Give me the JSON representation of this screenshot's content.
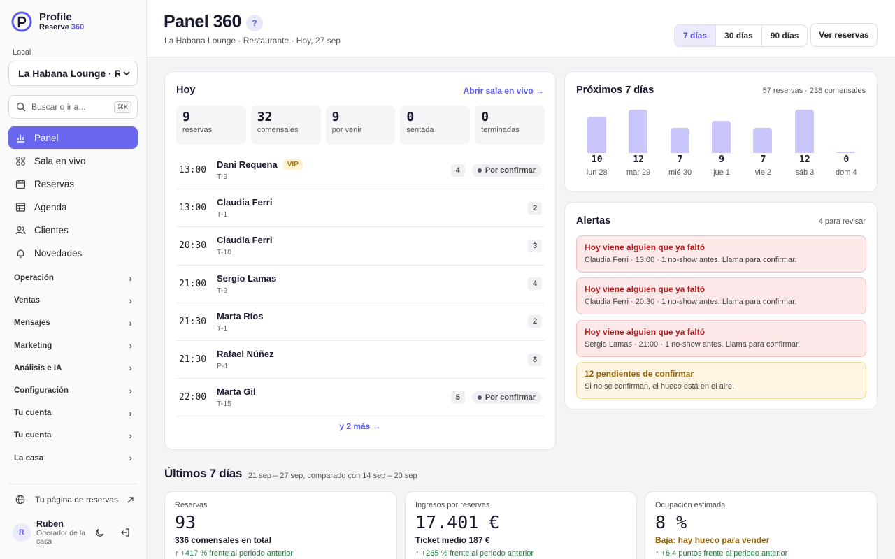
{
  "brand": {
    "name": "Profile",
    "sub_main": "Reserve ",
    "sub_accent": "360"
  },
  "sidebar": {
    "local_label": "Local",
    "local_value": "La Habana Lounge · Restaurante",
    "search_placeholder": "Buscar o ir a...",
    "search_shortcut": "⌘K",
    "nav": [
      {
        "label": "Panel",
        "icon": "bar-chart-icon",
        "active": true
      },
      {
        "label": "Sala en vivo",
        "icon": "grid-icon"
      },
      {
        "label": "Reservas",
        "icon": "calendar-icon"
      },
      {
        "label": "Agenda",
        "icon": "table-icon"
      },
      {
        "label": "Clientes",
        "icon": "users-icon"
      },
      {
        "label": "Novedades",
        "icon": "bell-icon"
      }
    ],
    "groups": [
      "Operación",
      "Ventas",
      "Mensajes",
      "Marketing",
      "Análisis e IA",
      "Configuración",
      "Tu cuenta",
      "Tu cuenta",
      "La casa"
    ],
    "public_link": "Tu página de reservas",
    "user": {
      "initial": "R",
      "name": "Ruben",
      "role": "Operador de la casa"
    }
  },
  "header": {
    "title": "Panel 360",
    "help": "?",
    "subtitle": "La Habana Lounge · Restaurante · Hoy, 27 sep",
    "ranges": [
      {
        "label": "7 días",
        "active": true
      },
      {
        "label": "30 días"
      },
      {
        "label": "90 días"
      }
    ],
    "view_button": "Ver reservas"
  },
  "today": {
    "title": "Hoy",
    "open_live": "Abrir sala en vivo →",
    "stats": [
      {
        "value": "9",
        "label": "reservas"
      },
      {
        "value": "32",
        "label": "comensales"
      },
      {
        "value": "9",
        "label": "por venir"
      },
      {
        "value": "0",
        "label": "sentada"
      },
      {
        "value": "0",
        "label": "terminadas"
      }
    ],
    "reservations": [
      {
        "time": "13:00",
        "name": "Dani Requena",
        "vip": "VIP",
        "table": "T-9",
        "pax": "4",
        "status": "Por confirmar"
      },
      {
        "time": "13:00",
        "name": "Claudia Ferri",
        "vip": "",
        "table": "T-1",
        "pax": "2",
        "status": ""
      },
      {
        "time": "20:30",
        "name": "Claudia Ferri",
        "vip": "",
        "table": "T-10",
        "pax": "3",
        "status": ""
      },
      {
        "time": "21:00",
        "name": "Sergio Lamas",
        "vip": "",
        "table": "T-9",
        "pax": "4",
        "status": ""
      },
      {
        "time": "21:30",
        "name": "Marta Ríos",
        "vip": "",
        "table": "T-1",
        "pax": "2",
        "status": ""
      },
      {
        "time": "21:30",
        "name": "Rafael Núñez",
        "vip": "",
        "table": "P-1",
        "pax": "8",
        "status": ""
      },
      {
        "time": "22:00",
        "name": "Marta Gil",
        "vip": "",
        "table": "T-15",
        "pax": "5",
        "status": "Por confirmar"
      }
    ],
    "more": "y 2 más →"
  },
  "upcoming": {
    "title": "Próximos 7 días",
    "summary": "57 reservas · 238 comensales",
    "chart_data": {
      "type": "bar",
      "categories": [
        "lun 28",
        "mar 29",
        "mié 30",
        "jue 1",
        "vie 2",
        "sáb 3",
        "dom 4"
      ],
      "values": [
        10,
        12,
        7,
        9,
        7,
        12,
        0
      ],
      "ylim": [
        0,
        12
      ],
      "grid": false
    }
  },
  "alerts": {
    "title": "Alertas",
    "count": "4 para revisar",
    "items": [
      {
        "title": "Hoy viene alguien que ya faltó",
        "desc": "Claudia Ferri · 13:00 · 1 no-show antes. Llama para confirmar.",
        "kind": "danger"
      },
      {
        "title": "Hoy viene alguien que ya faltó",
        "desc": "Claudia Ferri · 20:30 · 1 no-show antes. Llama para confirmar.",
        "kind": "danger"
      },
      {
        "title": "Hoy viene alguien que ya faltó",
        "desc": "Sergio Lamas · 21:00 · 1 no-show antes. Llama para confirmar.",
        "kind": "danger"
      },
      {
        "title": "12 pendientes de confirmar",
        "desc": "Si no se confirman, el hueco está en el aire.",
        "kind": "warn"
      }
    ]
  },
  "last7": {
    "title": "Últimos 7 días",
    "range": "21 sep – 27 sep, comparado con 14 sep – 20 sep",
    "kpis": [
      {
        "label": "Reservas",
        "value": "93",
        "sub": "336 comensales en total",
        "trend": "↑ +417 % frente al periodo anterior",
        "warn": false
      },
      {
        "label": "Ingresos por reservas",
        "value": "17.401 €",
        "sub": "Ticket medio 187 €",
        "trend": "↑ +265 % frente al periodo anterior",
        "warn": false
      },
      {
        "label": "Ocupación estimada",
        "value": "8 %",
        "sub": "Baja: hay hueco para vender",
        "trend": "↑ +6,4 puntos frente al periodo anterior",
        "warn": true
      }
    ]
  },
  "colors": {
    "accent": "#6a67ef",
    "bar": "#c8c6fa",
    "danger": "#b42020",
    "warn": "#9c6200",
    "positive": "#1f7a3a"
  }
}
